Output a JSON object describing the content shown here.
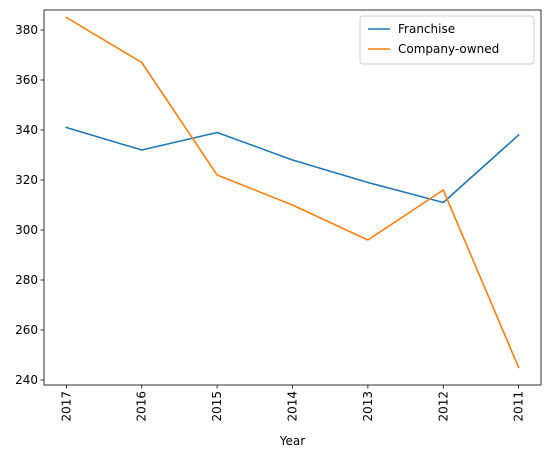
{
  "chart_data": {
    "type": "line",
    "categories": [
      "2017",
      "2016",
      "2015",
      "2014",
      "2013",
      "2012",
      "2011"
    ],
    "series": [
      {
        "name": "Franchise",
        "color": "#1f77b4",
        "values": [
          341,
          332,
          339,
          328,
          319,
          311,
          338
        ]
      },
      {
        "name": "Company-owned",
        "color": "#ff7f0e",
        "values": [
          385,
          367,
          322,
          310,
          296,
          316,
          245
        ]
      }
    ],
    "title": "",
    "xlabel": "Year",
    "ylabel": "",
    "ylim": [
      238,
      388
    ],
    "yticks": [
      240,
      260,
      280,
      300,
      320,
      340,
      360,
      380
    ],
    "x_tick_rotation": 90,
    "grid": false,
    "legend_position": "top-right"
  }
}
